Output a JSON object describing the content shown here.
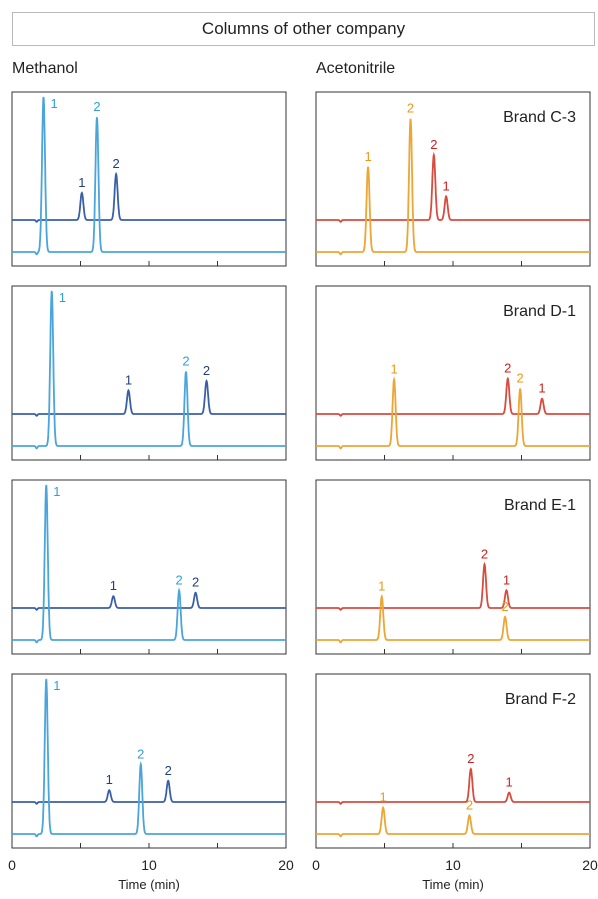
{
  "header": {
    "title": "Columns of other company"
  },
  "columns": {
    "left": "Methanol",
    "right": "Acetonitrile"
  },
  "colors": {
    "dark_blue": "#3a5fa8",
    "light_blue": "#4aa5dc",
    "red": "#d84b3e",
    "orange": "#eda534",
    "peak_label_dark_blue": "#203e80",
    "peak_label_light_blue": "#2fa0dc",
    "peak_label_red": "#cc1f1f",
    "peak_label_orange": "#e79a1a"
  },
  "chart_data": [
    {
      "type": "line",
      "panel": "Methanol - Brand C-3",
      "xlim": [
        0,
        20
      ],
      "series": [
        {
          "color": "dark_blue",
          "baseline": "upper",
          "peaks": [
            {
              "label": "1",
              "x": 5.1,
              "height": 0.23
            },
            {
              "label": "2",
              "x": 7.6,
              "height": 0.39
            }
          ]
        },
        {
          "color": "light_blue",
          "baseline": "lower",
          "peaks": [
            {
              "label": "1",
              "x": 2.3,
              "height": 1.0
            },
            {
              "label": "2",
              "x": 6.2,
              "height": 0.87
            }
          ]
        }
      ]
    },
    {
      "type": "line",
      "panel": "Acetonitrile - Brand C-3",
      "title": "Brand C-3",
      "xlim": [
        0,
        20
      ],
      "series": [
        {
          "color": "red",
          "baseline": "upper",
          "peaks": [
            {
              "label": "2",
              "x": 8.6,
              "height": 0.55
            },
            {
              "label": "1",
              "x": 9.5,
              "height": 0.2
            }
          ]
        },
        {
          "color": "orange",
          "baseline": "lower",
          "peaks": [
            {
              "label": "1",
              "x": 3.8,
              "height": 0.55
            },
            {
              "label": "2",
              "x": 6.9,
              "height": 0.86
            }
          ]
        }
      ]
    },
    {
      "type": "line",
      "panel": "Methanol - Brand D-1",
      "xlim": [
        0,
        20
      ],
      "series": [
        {
          "color": "dark_blue",
          "baseline": "upper",
          "peaks": [
            {
              "label": "1",
              "x": 8.5,
              "height": 0.2
            },
            {
              "label": "2",
              "x": 14.2,
              "height": 0.28
            }
          ]
        },
        {
          "color": "light_blue",
          "baseline": "lower",
          "peaks": [
            {
              "label": "1",
              "x": 2.9,
              "height": 1.0
            },
            {
              "label": "2",
              "x": 12.7,
              "height": 0.48
            }
          ]
        }
      ]
    },
    {
      "type": "line",
      "panel": "Acetonitrile - Brand D-1",
      "title": "Brand D-1",
      "xlim": [
        0,
        20
      ],
      "series": [
        {
          "color": "red",
          "baseline": "upper",
          "peaks": [
            {
              "label": "2",
              "x": 14.0,
              "height": 0.3
            },
            {
              "label": "1",
              "x": 16.5,
              "height": 0.13
            }
          ]
        },
        {
          "color": "orange",
          "baseline": "lower",
          "peaks": [
            {
              "label": "1",
              "x": 5.7,
              "height": 0.43
            },
            {
              "label": "2",
              "x": 14.9,
              "height": 0.37
            }
          ]
        }
      ]
    },
    {
      "type": "line",
      "panel": "Methanol - Brand E-1",
      "xlim": [
        0,
        20
      ],
      "series": [
        {
          "color": "dark_blue",
          "baseline": "upper",
          "peaks": [
            {
              "label": "1",
              "x": 7.4,
              "height": 0.1
            },
            {
              "label": "2",
              "x": 13.4,
              "height": 0.13
            }
          ]
        },
        {
          "color": "light_blue",
          "baseline": "lower",
          "peaks": [
            {
              "label": "1",
              "x": 2.5,
              "height": 1.0
            },
            {
              "label": "2",
              "x": 12.2,
              "height": 0.32
            }
          ]
        }
      ]
    },
    {
      "type": "line",
      "panel": "Acetonitrile - Brand E-1",
      "title": "Brand E-1",
      "xlim": [
        0,
        20
      ],
      "series": [
        {
          "color": "red",
          "baseline": "upper",
          "peaks": [
            {
              "label": "2",
              "x": 12.3,
              "height": 0.37
            },
            {
              "label": "1",
              "x": 13.9,
              "height": 0.15
            }
          ]
        },
        {
          "color": "orange",
          "baseline": "lower",
          "peaks": [
            {
              "label": "1",
              "x": 4.8,
              "height": 0.28
            },
            {
              "label": "2",
              "x": 13.8,
              "height": 0.15
            }
          ]
        }
      ]
    },
    {
      "type": "line",
      "panel": "Methanol - Brand F-2",
      "xlim": [
        0,
        20
      ],
      "series": [
        {
          "color": "dark_blue",
          "baseline": "upper",
          "peaks": [
            {
              "label": "1",
              "x": 7.1,
              "height": 0.1
            },
            {
              "label": "2",
              "x": 11.4,
              "height": 0.18
            }
          ]
        },
        {
          "color": "light_blue",
          "baseline": "lower",
          "peaks": [
            {
              "label": "1",
              "x": 2.5,
              "height": 1.0
            },
            {
              "label": "2",
              "x": 9.4,
              "height": 0.45
            }
          ]
        }
      ]
    },
    {
      "type": "line",
      "panel": "Acetonitrile - Brand F-2",
      "title": "Brand F-2",
      "xlim": [
        0,
        20
      ],
      "series": [
        {
          "color": "red",
          "baseline": "upper",
          "peaks": [
            {
              "label": "2",
              "x": 11.3,
              "height": 0.28
            },
            {
              "label": "1",
              "x": 14.1,
              "height": 0.08
            }
          ]
        },
        {
          "color": "orange",
          "baseline": "lower",
          "peaks": [
            {
              "label": "1",
              "x": 4.9,
              "height": 0.17
            },
            {
              "label": "2",
              "x": 11.2,
              "height": 0.12
            }
          ]
        }
      ]
    }
  ],
  "x_axis": {
    "ticks": [
      "0",
      "10",
      "20"
    ],
    "label": "Time (min)"
  }
}
